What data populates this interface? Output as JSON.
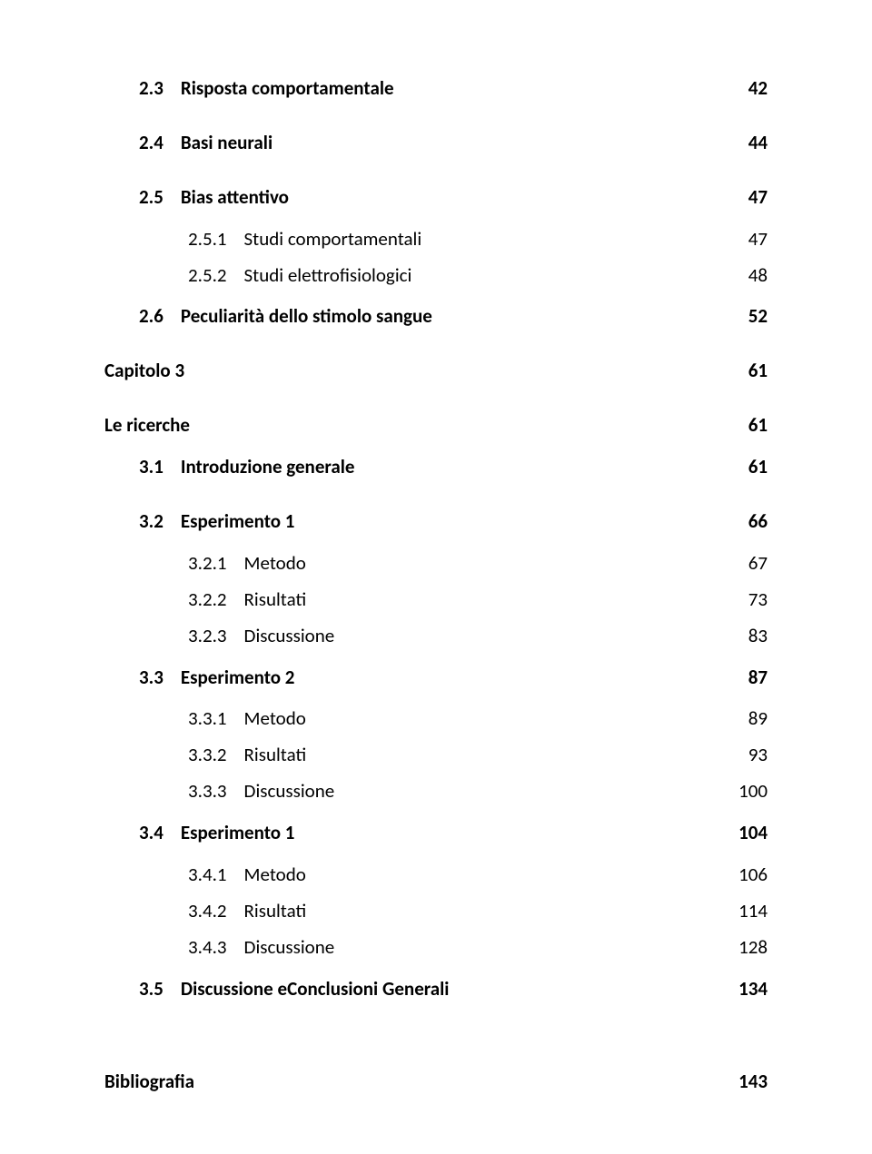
{
  "toc": [
    {
      "cls": "row b lvl1",
      "label": "2.3    Risposta comportamentale",
      "page": "42"
    },
    {
      "spacer": "sp-md"
    },
    {
      "cls": "row b lvl1",
      "label": "2.4    Basi neurali",
      "page": "44"
    },
    {
      "spacer": "sp-md"
    },
    {
      "cls": "row b lvl1",
      "label": "2.5    Bias attentivo",
      "page": "47"
    },
    {
      "spacer": "sp-sm"
    },
    {
      "cls": "row lvl2",
      "label": "2.5.1    Studi comportamentali",
      "page": "47"
    },
    {
      "cls": "row lvl2",
      "label": "2.5.2    Studi elettrofisiologici",
      "page": "48"
    },
    {
      "spacer": "sp-sm"
    },
    {
      "cls": "row b lvl1",
      "label": "2.6    Peculiarità dello stimolo sangue",
      "page": "52"
    },
    {
      "spacer": "sp-md"
    },
    {
      "cls": "row b",
      "label": "Capitolo 3",
      "page": "61"
    },
    {
      "spacer": "sp-md"
    },
    {
      "cls": "row b",
      "label": "Le ricerche",
      "page": "61"
    },
    {
      "spacer": "sp-sm"
    },
    {
      "cls": "row b lvl1",
      "label": "3.1    Introduzione generale",
      "page": "61"
    },
    {
      "spacer": "sp-md"
    },
    {
      "cls": "row b lvl1",
      "label": "3.2    Esperimento 1",
      "page": "66"
    },
    {
      "spacer": "sp-sm"
    },
    {
      "cls": "row lvl2",
      "label": "3.2.1    Metodo",
      "page": "67"
    },
    {
      "cls": "row lvl2",
      "label": "3.2.2    Risultati",
      "page": "73"
    },
    {
      "cls": "row lvl2",
      "label": "3.2.3    Discussione",
      "page": "83"
    },
    {
      "spacer": "sp-sm"
    },
    {
      "cls": "row b lvl1",
      "label": "3.3    Esperimento 2",
      "page": "87"
    },
    {
      "spacer": "sp-sm"
    },
    {
      "cls": "row lvl2",
      "label": "3.3.1    Metodo",
      "page": "89"
    },
    {
      "cls": "row lvl2",
      "label": "3.3.2    Risultati",
      "page": "93"
    },
    {
      "cls": "row lvl2",
      "label": "3.3.3    Discussione",
      "page": "100"
    },
    {
      "spacer": "sp-sm"
    },
    {
      "cls": "row b lvl1",
      "label": "3.4    Esperimento 1",
      "page": "104"
    },
    {
      "spacer": "sp-sm"
    },
    {
      "cls": "row lvl2",
      "label": "3.4.1    Metodo",
      "page": "106"
    },
    {
      "cls": "row lvl2",
      "label": "3.4.2    Risultati",
      "page": "114"
    },
    {
      "cls": "row lvl2",
      "label": "3.4.3    Discussione",
      "page": "128"
    },
    {
      "spacer": "sp-sm"
    },
    {
      "cls": "row b lvl1",
      "label": "3.5    Discussione eConclusioni Generali",
      "page": "134"
    },
    {
      "spacer": "sp-xl"
    },
    {
      "cls": "row b",
      "label": "Bibliografia",
      "page": "143"
    }
  ]
}
